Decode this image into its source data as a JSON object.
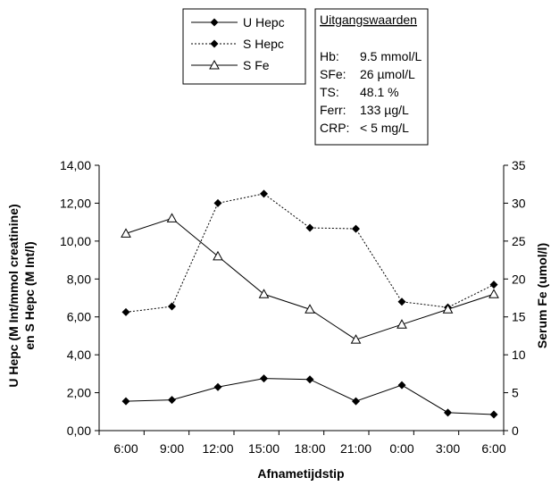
{
  "chart_data": {
    "type": "line",
    "categories": [
      "6:00",
      "9:00",
      "12:00",
      "15:00",
      "18:00",
      "21:00",
      "0:00",
      "3:00",
      "6:00"
    ],
    "xlabel": "Afnametijdstip",
    "ylabel": [
      "U Hepc (M Int/mmol creatinine)",
      "en S Hepc (M Int/l)"
    ],
    "y2label": "Serum Fe (umol/l)",
    "ylim": [
      0,
      14
    ],
    "y2lim": [
      0,
      35
    ],
    "yticks": [
      "0,00",
      "2,00",
      "4,00",
      "6,00",
      "8,00",
      "10,00",
      "12,00",
      "14,00"
    ],
    "y2ticks": [
      "0",
      "5",
      "10",
      "15",
      "20",
      "25",
      "30",
      "35"
    ],
    "grid": false,
    "legend_position": "top-left",
    "series": [
      {
        "name": "U Hepc",
        "axis": "left",
        "style": "solid",
        "marker": "diamond",
        "values": [
          1.55,
          1.62,
          2.3,
          2.75,
          2.7,
          1.55,
          2.4,
          0.95,
          0.85
        ]
      },
      {
        "name": "S Hepc",
        "axis": "left",
        "style": "dotted",
        "marker": "diamond",
        "values": [
          6.25,
          6.55,
          12.0,
          12.5,
          10.7,
          10.65,
          6.8,
          6.5,
          7.7
        ]
      },
      {
        "name": "S Fe",
        "axis": "right",
        "style": "solid",
        "marker": "triangle",
        "values": [
          26.0,
          28.0,
          23.0,
          18.0,
          16.0,
          12.0,
          14.0,
          16.0,
          18.0
        ]
      }
    ]
  },
  "info_box": {
    "title": "Uitgangswaarden",
    "rows": [
      {
        "label": "Hb:",
        "value": "9.5 mmol/L"
      },
      {
        "label": "SFe:",
        "value": "26 µmol/L"
      },
      {
        "label": "TS:",
        "value": "48.1 %"
      },
      {
        "label": "Ferr:",
        "value": "133 µg/L"
      },
      {
        "label": "CRP:",
        "value": "< 5 mg/L"
      }
    ]
  }
}
